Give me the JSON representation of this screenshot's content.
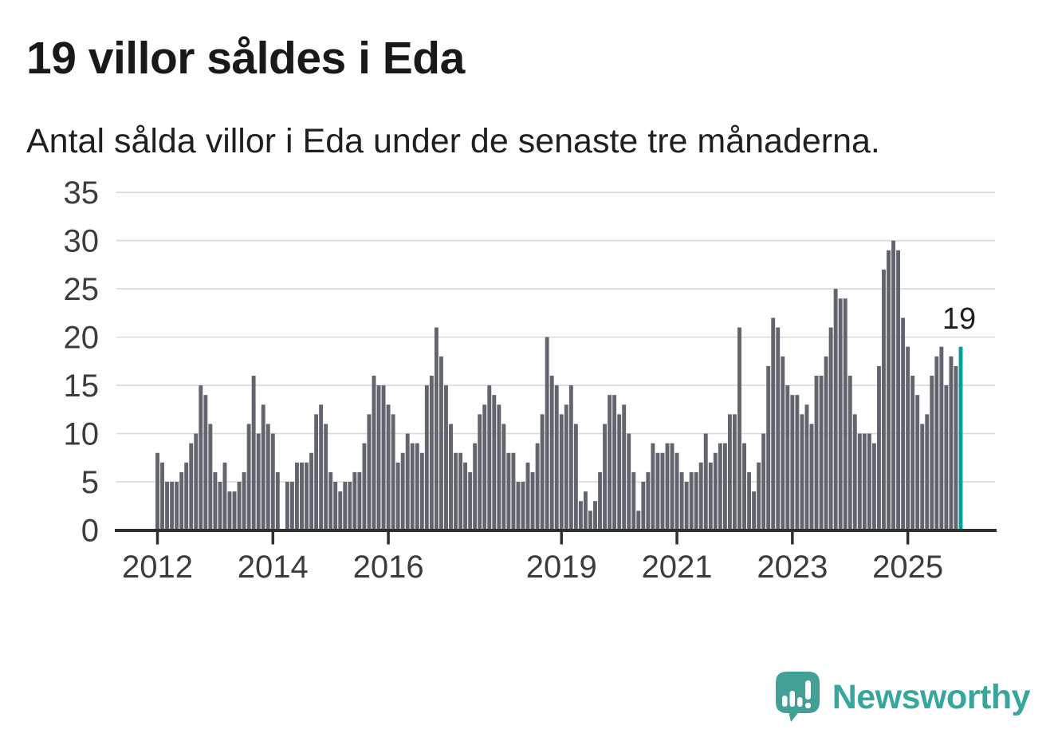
{
  "title": "19 villor såldes i Eda",
  "subtitle": "Antal sålda villor i Eda under de senaste tre månaderna.",
  "annotation": {
    "last_value_label": "19"
  },
  "branding": {
    "name": "Newsworthy",
    "icon": "speech-bubble-bar-chart-icon"
  },
  "colors": {
    "bar": "#62656d",
    "highlight": "#00a29a",
    "grid": "#d9d9d9",
    "axis": "#2f2f2f",
    "axis_text": "#3c3c3c",
    "title_text": "#191919",
    "brand": "#37a79d",
    "background": "#ffffff"
  },
  "chart_data": {
    "type": "bar",
    "title": "19 villor såldes i Eda",
    "subtitle": "Antal sålda villor i Eda under de senaste tre månaderna.",
    "ylabel": "",
    "xlabel": "",
    "ylim": [
      0,
      35
    ],
    "y_ticks": [
      0,
      5,
      10,
      15,
      20,
      25,
      30,
      35
    ],
    "grid": true,
    "legend": false,
    "x_tick_labels": [
      "2012",
      "2014",
      "2016",
      "2019",
      "2021",
      "2023",
      "2025"
    ],
    "x_tick_indices": [
      0,
      24,
      48,
      84,
      108,
      132,
      156
    ],
    "highlight_last_bar": true,
    "last_bar_annotation": "19",
    "values": [
      8,
      7,
      5,
      5,
      5,
      6,
      7,
      9,
      10,
      15,
      14,
      11,
      6,
      5,
      7,
      4,
      4,
      5,
      6,
      11,
      16,
      10,
      13,
      11,
      10,
      6,
      0,
      5,
      5,
      7,
      7,
      7,
      8,
      12,
      13,
      11,
      6,
      5,
      4,
      5,
      5,
      6,
      6,
      9,
      12,
      16,
      15,
      15,
      13,
      12,
      7,
      8,
      10,
      9,
      9,
      8,
      15,
      16,
      21,
      18,
      15,
      11,
      8,
      8,
      7,
      6,
      9,
      12,
      13,
      15,
      14,
      13,
      11,
      8,
      8,
      5,
      5,
      7,
      6,
      9,
      12,
      20,
      16,
      15,
      12,
      13,
      15,
      11,
      3,
      4,
      2,
      3,
      6,
      11,
      14,
      14,
      12,
      13,
      10,
      6,
      2,
      5,
      6,
      9,
      8,
      8,
      9,
      9,
      8,
      6,
      5,
      6,
      6,
      7,
      10,
      7,
      8,
      9,
      9,
      12,
      12,
      21,
      9,
      6,
      4,
      7,
      10,
      17,
      22,
      21,
      18,
      15,
      14,
      14,
      12,
      13,
      11,
      16,
      16,
      18,
      21,
      25,
      24,
      24,
      16,
      12,
      10,
      10,
      10,
      9,
      17,
      27,
      29,
      30,
      29,
      22,
      19,
      16,
      14,
      11,
      12,
      16,
      18,
      19,
      15,
      18,
      17,
      19
    ]
  }
}
